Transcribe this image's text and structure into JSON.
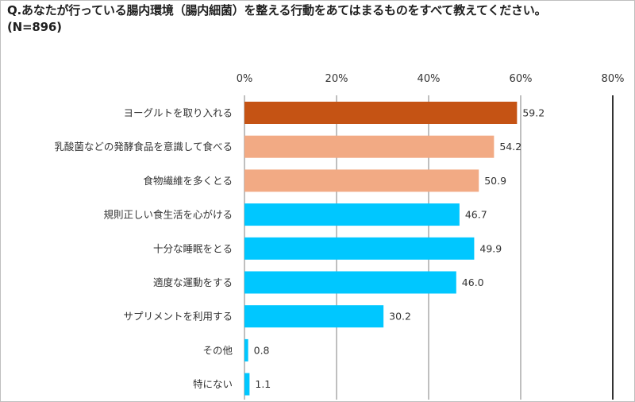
{
  "title_line1": "Q.あなたが行っている腸内環境（腸内細菌）を整える行動をあてはまるものをすべて教えてください。",
  "title_line2": "(N=896)",
  "chart_data": {
    "type": "bar",
    "orientation": "horizontal",
    "categories": [
      "ヨーグルトを取り入れる",
      "乳酸菌などの発酵食品を意識して食べる",
      "食物繊維を多くとる",
      "規則正しい食生活を心がける",
      "十分な睡眠をとる",
      "適度な運動をする",
      "サプリメントを利用する",
      "その他",
      "特にない"
    ],
    "values": [
      59.2,
      54.2,
      50.9,
      46.7,
      49.9,
      46.0,
      30.2,
      0.8,
      1.1
    ],
    "value_labels": [
      "59.2",
      "54.2",
      "50.9",
      "46.7",
      "49.9",
      "46.0",
      "30.2",
      "0.8",
      "1.1"
    ],
    "bar_colors": [
      "#c55314",
      "#f2aa84",
      "#f2aa84",
      "#00c7ff",
      "#00c7ff",
      "#00c7ff",
      "#00c7ff",
      "#00c7ff",
      "#00c7ff"
    ],
    "xlim": [
      0,
      80
    ],
    "xticks": [
      0,
      20,
      40,
      60,
      80
    ],
    "xtick_labels": [
      "0%",
      "20%",
      "40%",
      "60%",
      "80%"
    ],
    "grid": true
  }
}
